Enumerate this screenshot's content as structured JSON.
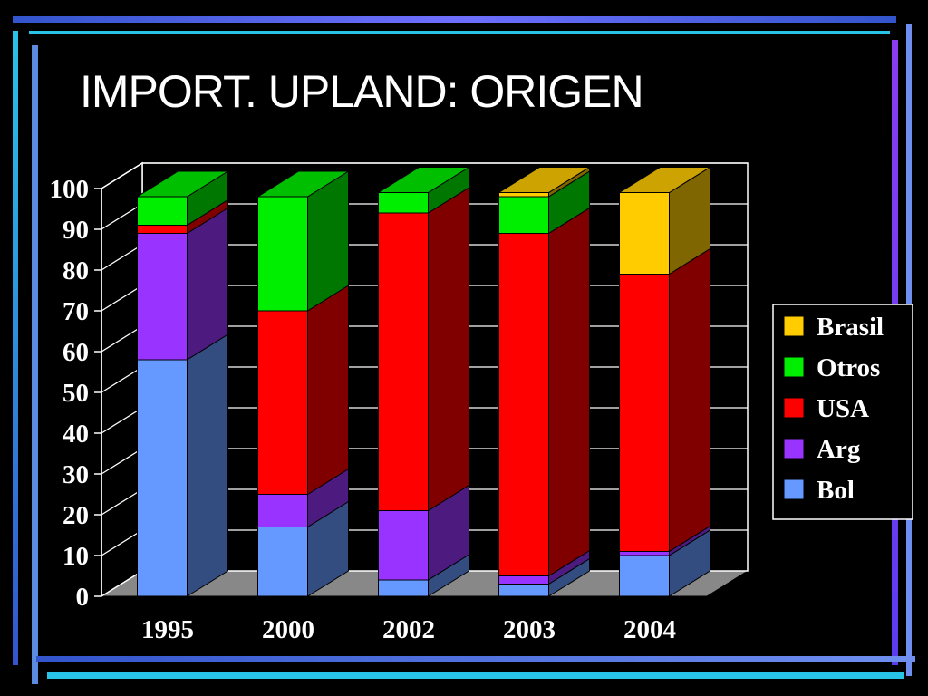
{
  "slide": {
    "title": "IMPORT. UPLAND: ORIGEN",
    "background": "#000000"
  },
  "chart_data": {
    "type": "bar",
    "stacked": true,
    "three_d": true,
    "title": "IMPORT. UPLAND: ORIGEN",
    "categories": [
      "1995",
      "2000",
      "2002",
      "2003",
      "2004"
    ],
    "ylim": [
      0,
      100
    ],
    "yticks": [
      0,
      10,
      20,
      30,
      40,
      50,
      60,
      70,
      80,
      90,
      100
    ],
    "grid": true,
    "legend_position": "right",
    "series": [
      {
        "name": "Bol",
        "color": "#6699ff",
        "values": [
          58,
          17,
          4,
          3,
          10
        ]
      },
      {
        "name": "Arg",
        "color": "#9933ff",
        "values": [
          31,
          8,
          17,
          2,
          1
        ]
      },
      {
        "name": "USA",
        "color": "#ff0000",
        "values": [
          2,
          45,
          73,
          84,
          68
        ]
      },
      {
        "name": "Otros",
        "color": "#00ee00",
        "values": [
          7,
          28,
          5,
          9,
          0
        ]
      },
      {
        "name": "Brasil",
        "color": "#ffcc00",
        "values": [
          0,
          0,
          0,
          1,
          20
        ]
      }
    ],
    "legend_order": [
      "Brasil",
      "Otros",
      "USA",
      "Arg",
      "Bol"
    ]
  }
}
